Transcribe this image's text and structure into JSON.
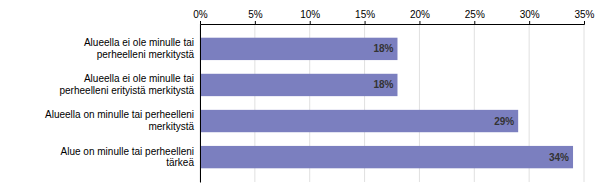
{
  "chart_data": {
    "type": "bar",
    "orientation": "horizontal",
    "categories": [
      "Alueella ei ole minulle tai\nperheelleni merkitystä",
      "Alueella ei ole minulle tai\nperheelleni erityistä merkitystä",
      "Alueella on minulle tai perheelleni\nmerkitystä",
      "Alue on minulle tai perheelleni\ntärkeä"
    ],
    "values": [
      18,
      18,
      29,
      34
    ],
    "value_labels": [
      "18%",
      "18%",
      "29%",
      "34%"
    ],
    "color": "#7B7FBF",
    "xlim": [
      0,
      35
    ],
    "xticks": [
      {
        "value": 0,
        "label": "0%"
      },
      {
        "value": 5,
        "label": "5%"
      },
      {
        "value": 10,
        "label": "10%"
      },
      {
        "value": 15,
        "label": "15%"
      },
      {
        "value": 20,
        "label": "20%"
      },
      {
        "value": 25,
        "label": "25%"
      },
      {
        "value": 30,
        "label": "30%"
      },
      {
        "value": 35,
        "label": "35%"
      }
    ],
    "grid": true,
    "data_labels": true
  }
}
